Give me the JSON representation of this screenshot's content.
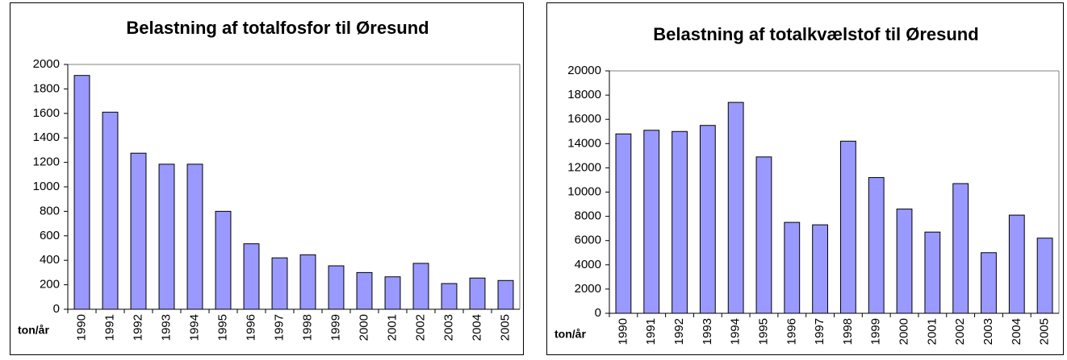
{
  "chart_data": [
    {
      "type": "bar",
      "title": "Belastning af totalfosfor til Øresund",
      "ylabel": "ton/år",
      "categories": [
        "1990",
        "1991",
        "1992",
        "1993",
        "1994",
        "1995",
        "1996",
        "1997",
        "1998",
        "1999",
        "2000",
        "2001",
        "2002",
        "2003",
        "2004",
        "2005"
      ],
      "values": [
        1910,
        1610,
        1275,
        1185,
        1185,
        800,
        535,
        420,
        445,
        355,
        300,
        265,
        375,
        210,
        255,
        235
      ],
      "color": "#9999ff",
      "ylim": [
        0,
        2000
      ],
      "yticks": [
        0,
        200,
        400,
        600,
        800,
        1000,
        1200,
        1400,
        1600,
        1800,
        2000
      ]
    },
    {
      "type": "bar",
      "title": "Belastning af totalkvælstof til Øresund",
      "ylabel": "ton/år",
      "categories": [
        "1990",
        "1991",
        "1992",
        "1993",
        "1994",
        "1995",
        "1996",
        "1997",
        "1998",
        "1999",
        "2000",
        "2001",
        "2002",
        "2003",
        "2004",
        "2005"
      ],
      "values": [
        14800,
        15100,
        15000,
        15500,
        17400,
        12900,
        7500,
        7300,
        14200,
        11200,
        8600,
        6700,
        10700,
        5000,
        8100,
        6200
      ],
      "color": "#9999ff",
      "ylim": [
        0,
        20000
      ],
      "yticks": [
        0,
        2000,
        4000,
        6000,
        8000,
        10000,
        12000,
        14000,
        16000,
        18000,
        20000
      ]
    }
  ]
}
